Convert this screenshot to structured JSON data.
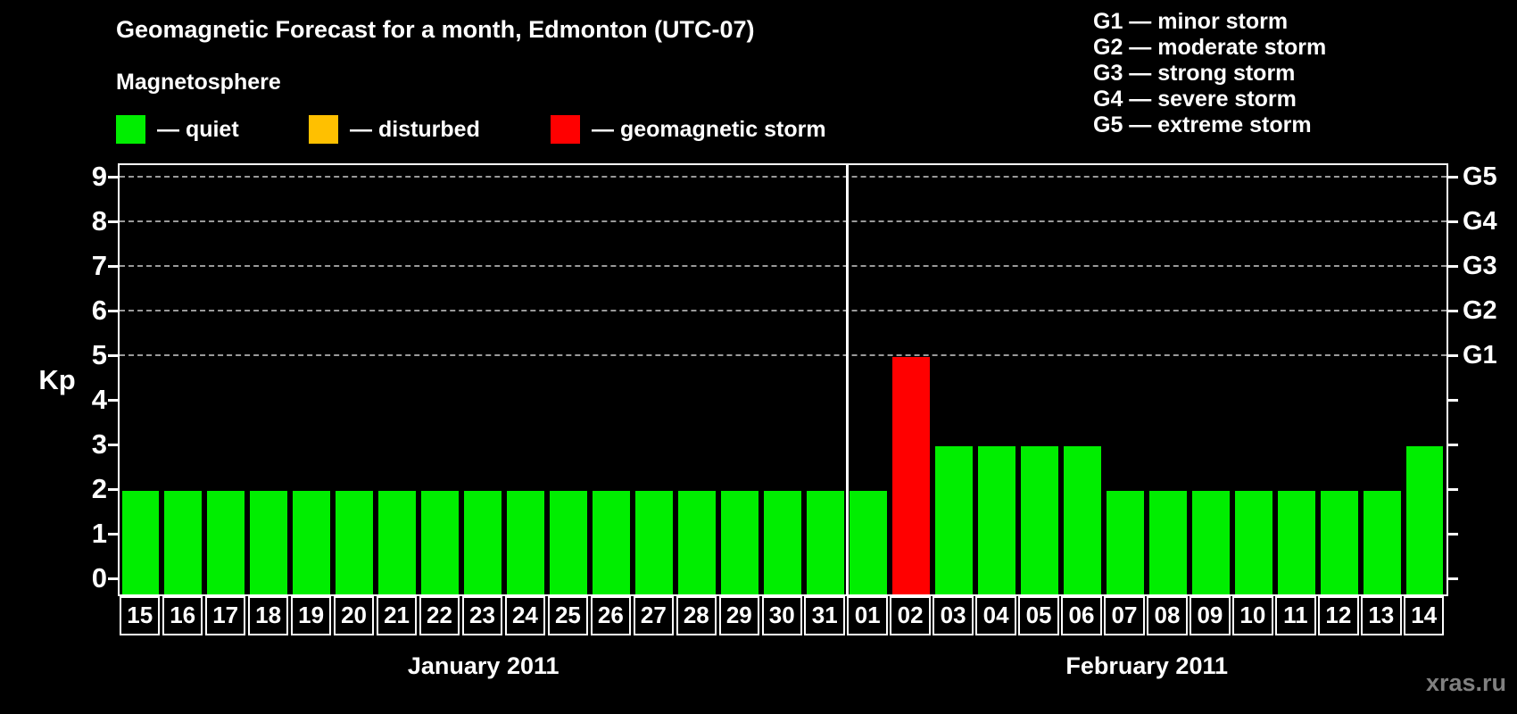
{
  "title": "Geomagnetic Forecast for a month, Edmonton (UTC-07)",
  "legend": {
    "heading": "Magnetosphere",
    "items": [
      {
        "name": "quiet",
        "label": "— quiet",
        "color": "#00ee00"
      },
      {
        "name": "disturbed",
        "label": "— disturbed",
        "color": "#ffc000"
      },
      {
        "name": "storm",
        "label": "— geomagnetic storm",
        "color": "#ff0000"
      }
    ]
  },
  "g_scale_legend": [
    "G1 — minor storm",
    "G2 — moderate storm",
    "G3 — strong storm",
    "G4 — severe storm",
    "G5 — extreme storm"
  ],
  "watermark": "xras.ru",
  "chart_data": {
    "type": "bar",
    "title": "Geomagnetic Forecast for a month, Edmonton (UTC-07)",
    "ylabel": "Kp",
    "ylim": [
      0,
      9
    ],
    "yticks": [
      0,
      1,
      2,
      3,
      4,
      5,
      6,
      7,
      8,
      9
    ],
    "gridlines_at": [
      5,
      6,
      7,
      8,
      9
    ],
    "grid": "dashed horizontal at G-storm levels only",
    "right_axis": [
      {
        "label": "G1",
        "kp": 5
      },
      {
        "label": "G2",
        "kp": 6
      },
      {
        "label": "G3",
        "kp": 7
      },
      {
        "label": "G4",
        "kp": 8
      },
      {
        "label": "G5",
        "kp": 9
      }
    ],
    "colors": {
      "quiet": "#00ee00",
      "disturbed": "#ffc000",
      "storm": "#ff0000"
    },
    "groups": [
      {
        "label": "January 2011",
        "categories": [
          "15",
          "16",
          "17",
          "18",
          "19",
          "20",
          "21",
          "22",
          "23",
          "24",
          "25",
          "26",
          "27",
          "28",
          "29",
          "30",
          "31"
        ],
        "values": [
          2,
          2,
          2,
          2,
          2,
          2,
          2,
          2,
          2,
          2,
          2,
          2,
          2,
          2,
          2,
          2,
          2
        ],
        "statuses": [
          "quiet",
          "quiet",
          "quiet",
          "quiet",
          "quiet",
          "quiet",
          "quiet",
          "quiet",
          "quiet",
          "quiet",
          "quiet",
          "quiet",
          "quiet",
          "quiet",
          "quiet",
          "quiet",
          "quiet"
        ]
      },
      {
        "label": "February 2011",
        "categories": [
          "01",
          "02",
          "03",
          "04",
          "05",
          "06",
          "07",
          "08",
          "09",
          "10",
          "11",
          "12",
          "13",
          "14"
        ],
        "values": [
          2,
          5,
          3,
          3,
          3,
          3,
          2,
          2,
          2,
          2,
          2,
          2,
          2,
          3
        ],
        "statuses": [
          "quiet",
          "storm",
          "quiet",
          "quiet",
          "quiet",
          "quiet",
          "quiet",
          "quiet",
          "quiet",
          "quiet",
          "quiet",
          "quiet",
          "quiet",
          "quiet"
        ]
      }
    ]
  }
}
